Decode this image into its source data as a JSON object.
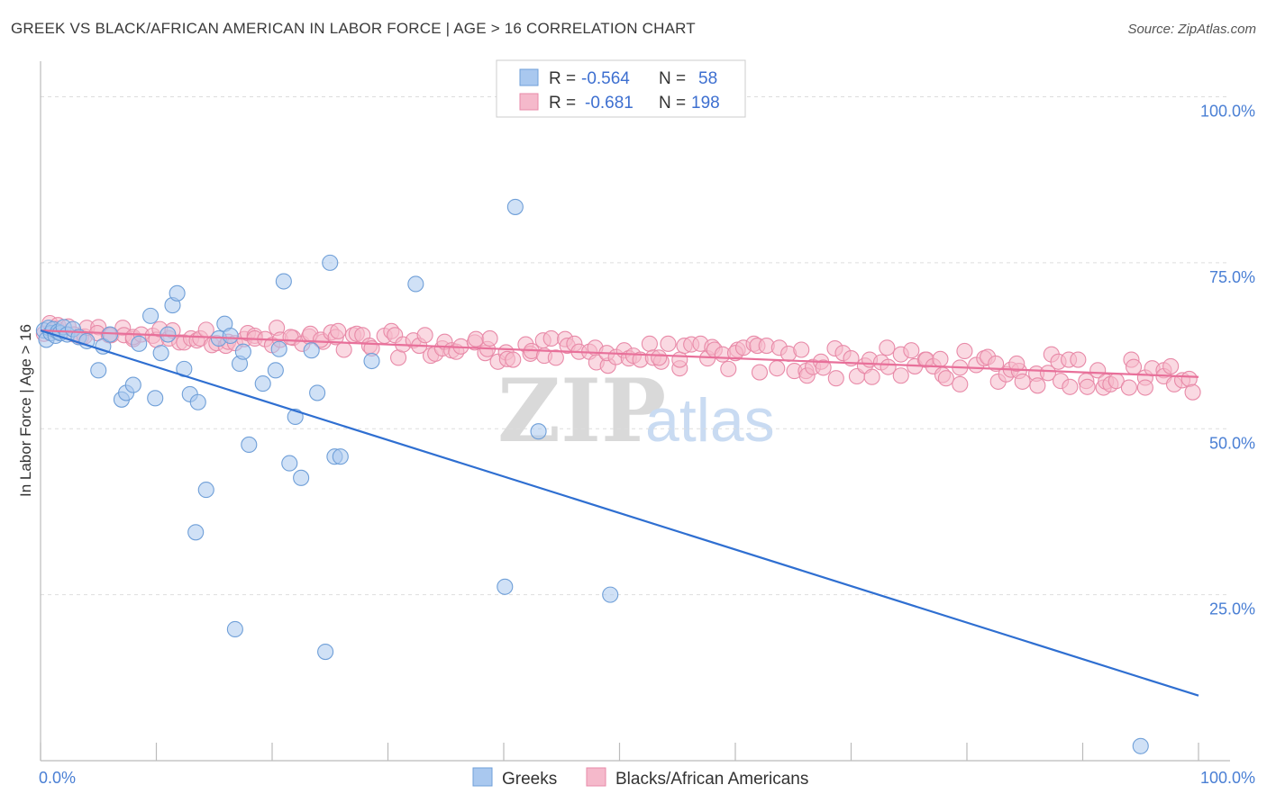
{
  "header": {
    "title": "GREEK VS BLACK/AFRICAN AMERICAN IN LABOR FORCE | AGE > 16 CORRELATION CHART",
    "source": "Source: ZipAtlas.com"
  },
  "legend_box": {
    "row1": {
      "r_label": "R =",
      "r_value": "-0.564",
      "n_label": "N =",
      "n_value": "58"
    },
    "row2": {
      "r_label": "R =",
      "r_value": "-0.681",
      "n_label": "N =",
      "n_value": "198"
    }
  },
  "watermark": {
    "zip": "ZIP",
    "atlas": "atlas"
  },
  "colors": {
    "greek_fill": "#a9c8ef",
    "greek_stroke": "#6f9fd8",
    "greek_line": "#2f6fd1",
    "black_fill": "#f5b9cb",
    "black_stroke": "#e88aa8",
    "black_line": "#e8709a",
    "tick_label": "#4a7fd4",
    "grid": "#dddddd"
  },
  "chart_data": {
    "type": "scatter",
    "title": "GREEK VS BLACK/AFRICAN AMERICAN IN LABOR FORCE | AGE > 16 CORRELATION CHART",
    "ylabel": "In Labor Force | Age > 16",
    "xlabel": "",
    "xlim": [
      0,
      100
    ],
    "ylim": [
      0,
      104
    ],
    "x_tick_labels": [
      "0.0%",
      "100.0%"
    ],
    "y_tick_labels": [
      "25.0%",
      "50.0%",
      "75.0%",
      "100.0%"
    ],
    "y_ticks": [
      25,
      50,
      75,
      100
    ],
    "grid": "horizontal dashed",
    "legend": "bottom-center",
    "series": [
      {
        "name": "Greeks",
        "R": -0.564,
        "N": 58,
        "trend": {
          "x": [
            0,
            100
          ],
          "y": [
            64.8,
            9.8
          ]
        },
        "points": [
          [
            0.3,
            64.8
          ],
          [
            0.5,
            63.4
          ],
          [
            0.7,
            65.2
          ],
          [
            0.9,
            64.4
          ],
          [
            1.1,
            65.0
          ],
          [
            1.3,
            64.0
          ],
          [
            1.5,
            64.6
          ],
          [
            1.7,
            64.4
          ],
          [
            2.0,
            65.3
          ],
          [
            2.3,
            64.2
          ],
          [
            2.8,
            65.0
          ],
          [
            3.3,
            63.8
          ],
          [
            4.0,
            63.2
          ],
          [
            5.0,
            58.8
          ],
          [
            5.4,
            62.4
          ],
          [
            6.0,
            64.2
          ],
          [
            7.0,
            54.4
          ],
          [
            7.4,
            55.4
          ],
          [
            8.0,
            56.6
          ],
          [
            8.5,
            62.8
          ],
          [
            9.5,
            67.0
          ],
          [
            9.9,
            54.6
          ],
          [
            10.4,
            61.4
          ],
          [
            11.0,
            64.2
          ],
          [
            11.4,
            68.6
          ],
          [
            11.8,
            70.4
          ],
          [
            12.4,
            59.0
          ],
          [
            12.9,
            55.2
          ],
          [
            13.4,
            34.4
          ],
          [
            13.6,
            54.0
          ],
          [
            14.3,
            40.8
          ],
          [
            15.4,
            63.6
          ],
          [
            15.9,
            65.8
          ],
          [
            16.4,
            64.0
          ],
          [
            16.8,
            19.8
          ],
          [
            17.2,
            59.8
          ],
          [
            17.5,
            61.6
          ],
          [
            18.0,
            47.6
          ],
          [
            19.2,
            56.8
          ],
          [
            20.3,
            58.8
          ],
          [
            20.6,
            62.0
          ],
          [
            21.0,
            72.2
          ],
          [
            21.5,
            44.8
          ],
          [
            22.0,
            51.8
          ],
          [
            22.5,
            42.6
          ],
          [
            23.4,
            61.8
          ],
          [
            23.9,
            55.4
          ],
          [
            24.6,
            16.4
          ],
          [
            25.0,
            75.0
          ],
          [
            25.4,
            45.8
          ],
          [
            25.9,
            45.8
          ],
          [
            28.6,
            60.2
          ],
          [
            32.4,
            71.8
          ],
          [
            40.1,
            26.2
          ],
          [
            41.0,
            83.4
          ],
          [
            43.0,
            49.6
          ],
          [
            49.2,
            25.0
          ],
          [
            95.0,
            2.2
          ]
        ]
      },
      {
        "name": "Blacks/African Americans",
        "R": -0.681,
        "N": 198,
        "trend": {
          "x": [
            0,
            100
          ],
          "y": [
            64.8,
            57.8
          ]
        },
        "points": []
      }
    ]
  }
}
